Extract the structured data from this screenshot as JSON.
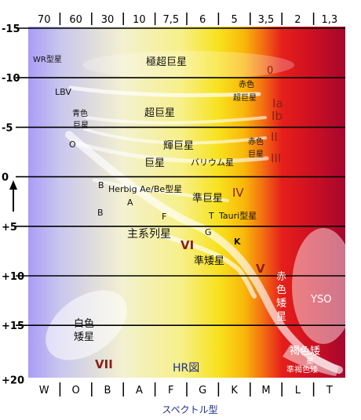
{
  "temperature_labels": [
    "70",
    "60",
    "30",
    "10",
    "7,5",
    "6",
    "5",
    "3,5",
    "2",
    "1,3"
  ],
  "spectral_classes": [
    "W",
    "O",
    "B",
    "A",
    "F",
    "G",
    "K",
    "M",
    "L",
    "T"
  ],
  "magnitude_labels": [
    "-15",
    "-10",
    "-5",
    "0",
    "+5",
    "+10",
    "+15",
    "+20"
  ],
  "x_axis_label": "スペクトル型",
  "diagram_title": "HR図",
  "region_labels": {
    "wr": "WR型星",
    "hypergiant": "極超巨星",
    "zero": "0",
    "lbv": "LBV",
    "red_supergiant_1": "赤色",
    "red_supergiant_2": "超巨星",
    "ia": "Ia",
    "ib": "Ib",
    "supergiant": "超巨星",
    "blue_supergiant_1": "青色",
    "blue_supergiant_2": "巨星",
    "o_star": "O",
    "bright_giant": "輝巨星",
    "ii": "II",
    "red_giant_1": "赤色",
    "red_giant_2": "巨星",
    "giant": "巨星",
    "barium": "バリウム星",
    "iii": "III",
    "b_star_1": "B",
    "herbig": "Herbig Ae/Be型星",
    "subgiant": "準巨星",
    "iv": "IV",
    "a_star": "A",
    "b_star_2": "B",
    "f_star": "F",
    "t_star": "T",
    "t_tauri": "Tauri型星",
    "main_sequence": "主系列星",
    "g_star": "G",
    "k_star": "K",
    "vi": "VI",
    "subdwarf": "準矮星",
    "v": "V",
    "red_dwarf": [
      "赤",
      "色",
      "矮",
      "星"
    ],
    "yso": "YSO",
    "white_dwarf_1": "白色",
    "white_dwarf_2": "矮星",
    "vii": "VII",
    "brown_dwarf": "褐色矮",
    "brown_dwarf_extra": "星",
    "sub_brown_dwarf": "準褐色矮"
  },
  "colors": {
    "spectrum": [
      "#a99df7",
      "#c9c6ee",
      "#f3f1cf",
      "#f7f08a",
      "#f7e21e",
      "#f9b80a",
      "#f36f12",
      "#e61f1b",
      "#cc0f22",
      "#a5072e"
    ],
    "roman_numeral": "#8b1f16",
    "title_blue": "#1d2e8f"
  }
}
